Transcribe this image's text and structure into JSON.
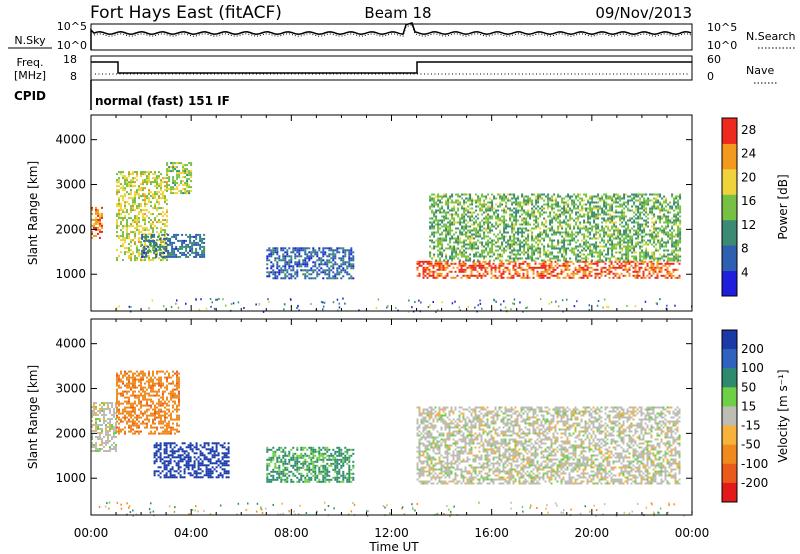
{
  "header": {
    "station": "Fort Hays East (fitACF)",
    "beam": "Beam 18",
    "date": "09/Nov/2013"
  },
  "noise_panel": {
    "left_label": "N.Sky",
    "right_label": "N.Search",
    "left_ticks": [
      "10^5",
      "10^0"
    ],
    "right_ticks": [
      "10^5",
      "10^0"
    ]
  },
  "freq_panel": {
    "left_label_1": "Freq.",
    "left_label_2": "[MHz]",
    "left_ticks": [
      "18",
      "8"
    ],
    "right_label": "Nave",
    "right_ticks": [
      "60",
      "0"
    ]
  },
  "cpid": {
    "label": "CPID",
    "mode": "normal (fast) 151 IF"
  },
  "time_axis": {
    "label": "Time UT",
    "ticks": [
      "00:00",
      "04:00",
      "08:00",
      "12:00",
      "16:00",
      "20:00",
      "00:00"
    ]
  },
  "range_axis": {
    "label": "Slant Range [km]",
    "ticks": [
      "1000",
      "2000",
      "3000",
      "4000"
    ]
  },
  "power_colorbar": {
    "label": "Power [dB]",
    "ticks": [
      "4",
      "8",
      "12",
      "16",
      "20",
      "24",
      "28"
    ],
    "colors": [
      "#1e1edc",
      "#2f5fb0",
      "#3a8a74",
      "#76c043",
      "#f0d23a",
      "#f39a1e",
      "#ee2a1e"
    ]
  },
  "velocity_colorbar": {
    "label": "Velocity [m s⁻¹]",
    "ticks": [
      "200",
      "100",
      "50",
      "15",
      "-15",
      "-50",
      "-100",
      "-200"
    ],
    "colors": [
      "#1a3aa8",
      "#2f63c0",
      "#2e8a6e",
      "#6fd047",
      "#bdbdb6",
      "#f6b23a",
      "#f08a1e",
      "#ea5a1a",
      "#e31a1a"
    ]
  },
  "chart_data": [
    {
      "type": "heatmap",
      "name": "Power",
      "xlabel": "Time UT",
      "ylabel": "Slant Range [km]",
      "xlim_hours": [
        0,
        24
      ],
      "ylim_km": [
        180,
        4550
      ],
      "colorbar_range_db": [
        0,
        30
      ],
      "regions": [
        {
          "t": [
            0.0,
            0.4
          ],
          "r": [
            1800,
            2500
          ],
          "level": 24
        },
        {
          "t": [
            1.0,
            3.0
          ],
          "r": [
            1300,
            3300
          ],
          "level": 18
        },
        {
          "t": [
            3.0,
            4.0
          ],
          "r": [
            2800,
            3500
          ],
          "level": 16
        },
        {
          "t": [
            2.0,
            4.5
          ],
          "r": [
            1400,
            1900
          ],
          "level": 8
        },
        {
          "t": [
            7.0,
            10.5
          ],
          "r": [
            900,
            1600
          ],
          "level": 7
        },
        {
          "t": [
            13.0,
            23.5
          ],
          "r": [
            900,
            1300
          ],
          "level": 26
        },
        {
          "t": [
            13.5,
            23.5
          ],
          "r": [
            1300,
            2800
          ],
          "level": 14
        }
      ]
    },
    {
      "type": "heatmap",
      "name": "Velocity",
      "xlabel": "Time UT",
      "ylabel": "Slant Range [km]",
      "xlim_hours": [
        0,
        24
      ],
      "ylim_km": [
        180,
        4550
      ],
      "colorbar_range_ms": [
        -200,
        200
      ],
      "regions": [
        {
          "t": [
            0.0,
            1.0
          ],
          "r": [
            1600,
            2700
          ],
          "v": 0
        },
        {
          "t": [
            1.0,
            3.5
          ],
          "r": [
            2000,
            3400
          ],
          "v": -60
        },
        {
          "t": [
            2.5,
            5.5
          ],
          "r": [
            1000,
            1800
          ],
          "v": 180
        },
        {
          "t": [
            7.0,
            10.5
          ],
          "r": [
            900,
            1700
          ],
          "v": 40
        },
        {
          "t": [
            13.0,
            23.5
          ],
          "r": [
            900,
            2600
          ],
          "v": 0
        }
      ]
    }
  ]
}
